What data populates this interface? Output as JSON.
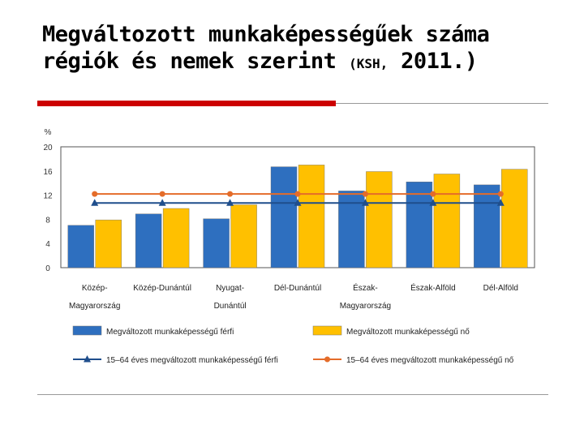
{
  "slide": {
    "title_main": "Megváltozott munkaképességűek száma régiók és nemek szerint ",
    "title_source": "(KSH,",
    "title_tail": " 2011.)"
  },
  "chart_data": {
    "type": "bar",
    "ylabel": "%",
    "ylim": [
      0,
      20
    ],
    "yticks": [
      0,
      4,
      8,
      12,
      16,
      20
    ],
    "grid": false,
    "legend_position": "bottom",
    "categories": [
      [
        "Közép-",
        "Magyarország"
      ],
      [
        "Közép-Dunántúl"
      ],
      [
        "Nyugat-",
        "Dunántúl"
      ],
      [
        "Dél-Dunántúl"
      ],
      [
        "Észak-",
        "Magyarország"
      ],
      [
        "Észak-Alföld"
      ],
      [
        "Dél-Alföld"
      ]
    ],
    "series": [
      {
        "name": "Megváltozott munkaképességű férfi",
        "kind": "bar",
        "color": "#2e6fbf",
        "values": [
          7.0,
          8.9,
          8.1,
          16.7,
          12.7,
          14.2,
          13.7
        ]
      },
      {
        "name": "Megváltozott munkaképességű nő",
        "kind": "bar",
        "color": "#ffc000",
        "values": [
          7.9,
          9.8,
          10.4,
          17.0,
          15.9,
          15.5,
          16.3
        ]
      },
      {
        "name": "15–64 éves megváltozott munkaképességű férfi",
        "kind": "line",
        "marker": "triangle",
        "color": "#1f4e8c",
        "values": [
          10.7,
          10.7,
          10.7,
          10.7,
          10.7,
          10.7,
          10.7
        ]
      },
      {
        "name": "15–64 éves megváltozott munkaképességű nő",
        "kind": "line",
        "marker": "circle",
        "color": "#e46c2a",
        "values": [
          12.2,
          12.2,
          12.2,
          12.2,
          12.2,
          12.2,
          12.2
        ]
      }
    ]
  }
}
